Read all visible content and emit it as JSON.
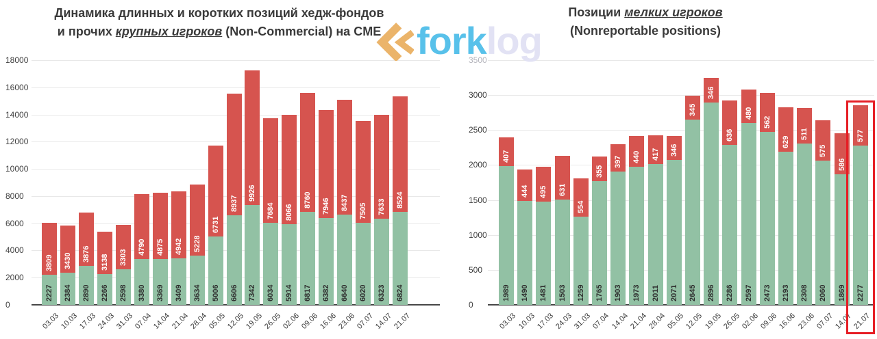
{
  "titles": {
    "left": {
      "line1": "Динамика длинных и коротких позиций хедж-фондов",
      "line2_pre": "и прочих ",
      "line2_em": "крупных игроков",
      "line2_post": " (Non-Commercial) на CME"
    },
    "right": {
      "line1_pre": "Позиции ",
      "line1_em": "мелких игроков",
      "line2": "(Nonreportable positions)"
    }
  },
  "logo": {
    "fork": "fork",
    "log": "log",
    "fork_color": "#58c1ea",
    "log_color": "#e2e2f4",
    "icon_color": "#ebb46a"
  },
  "colors": {
    "long_green": "#92c1a4",
    "short_red": "#d6544f",
    "label_on_green": "#2e2e2e",
    "label_on_red": "#ffffff",
    "grid": "#e8e8e8",
    "axis_line": "#464646",
    "tick_text": "#3e3e3e",
    "tick_muted": "#b4b4bc",
    "title_text": "#3a3a3a",
    "highlight": "#e61e25"
  },
  "chart_data": [
    {
      "id": "left",
      "type": "bar",
      "stacked": true,
      "title": "Динамика длинных и коротких позиций хедж-фондов и прочих крупных игроков (Non-Commercial) на CME",
      "categories": [
        "03.03",
        "10.03",
        "17.03",
        "24.03",
        "31.03",
        "07.04",
        "14.04",
        "21.04",
        "28.04",
        "05.05",
        "12.05",
        "19.05",
        "26.05",
        "02.06",
        "09.06",
        "16.06",
        "23.06",
        "07.07",
        "14.07",
        "21.07"
      ],
      "series": [
        {
          "name": "long (green, bottom)",
          "color": "#92c1a4",
          "values": [
            2227,
            2384,
            2890,
            2266,
            2598,
            3380,
            3369,
            3409,
            3634,
            5006,
            6606,
            7342,
            6034,
            5914,
            6817,
            6382,
            6640,
            6020,
            6323,
            6824
          ]
        },
        {
          "name": "short (red, top)",
          "color": "#d6544f",
          "values": [
            3809,
            3430,
            3876,
            3138,
            3303,
            4790,
            4875,
            4942,
            5228,
            6731,
            8937,
            9926,
            7684,
            8066,
            8760,
            7946,
            8437,
            7505,
            7633,
            8524
          ]
        }
      ],
      "ylim": [
        0,
        18000
      ],
      "yticks": [
        0,
        2000,
        4000,
        6000,
        8000,
        10000,
        12000,
        14000,
        16000,
        18000
      ],
      "grid": true,
      "legend": "none"
    },
    {
      "id": "right",
      "type": "bar",
      "stacked": true,
      "title": "Позиции мелких игроков (Nonreportable positions)",
      "categories": [
        "03.03",
        "10.03",
        "17.03",
        "24.03",
        "31.03",
        "07.04",
        "14.04",
        "21.04",
        "28.04",
        "05.05",
        "12.05",
        "19.05",
        "26.05",
        "02.06",
        "09.06",
        "16.06",
        "23.06",
        "07.07",
        "14.07",
        "21.07"
      ],
      "series": [
        {
          "name": "long (green, bottom)",
          "color": "#92c1a4",
          "values": [
            1989,
            1490,
            1481,
            1503,
            1259,
            1765,
            1903,
            1973,
            2011,
            2071,
            2645,
            2896,
            2286,
            2597,
            2473,
            2193,
            2308,
            2060,
            1869,
            2277
          ]
        },
        {
          "name": "short (red, top)",
          "color": "#d6544f",
          "values": [
            407,
            444,
            495,
            631,
            554,
            355,
            397,
            440,
            417,
            346,
            345,
            346,
            636,
            480,
            562,
            629,
            511,
            575,
            586,
            577
          ]
        }
      ],
      "ylim": [
        0,
        3500
      ],
      "yticks": [
        0,
        500,
        1000,
        1500,
        2000,
        2500,
        3000,
        3500
      ],
      "ytick_muted": [
        3500
      ],
      "grid": true,
      "legend": "none",
      "highlight": {
        "category": "21.07",
        "index": 19,
        "color": "#e61e25"
      }
    }
  ]
}
